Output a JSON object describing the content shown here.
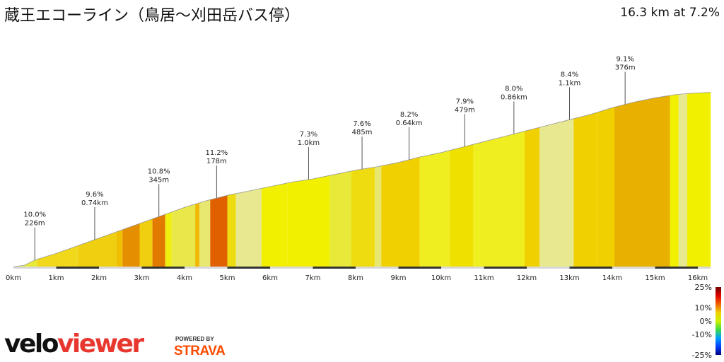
{
  "title": "蔵王エコーライン（鳥居〜刈田岳バス停）",
  "summary": "16.3 km at 7.2%",
  "chart_data": {
    "type": "area",
    "xlabel": "",
    "ylabel": "",
    "xlim": [
      0,
      16.3
    ],
    "x_ticks": [
      "0km",
      "1km",
      "2km",
      "3km",
      "4km",
      "5km",
      "6km",
      "7km",
      "8km",
      "9km",
      "10km",
      "11km",
      "12km",
      "13km",
      "14km",
      "15km",
      "16km"
    ],
    "profile_distance_km": [
      0,
      0.25,
      0.5,
      1.0,
      1.5,
      2.0,
      2.5,
      3.0,
      3.5,
      4.0,
      4.5,
      5.0,
      5.5,
      6.0,
      6.5,
      7.0,
      7.5,
      8.0,
      8.5,
      9.0,
      9.5,
      10.0,
      10.5,
      11.0,
      11.5,
      12.0,
      12.5,
      13.0,
      13.5,
      14.0,
      14.5,
      15.0,
      15.5,
      15.8,
      16.3
    ],
    "profile_height_rel": [
      0,
      0.01,
      0.06,
      0.12,
      0.19,
      0.26,
      0.33,
      0.4,
      0.47,
      0.54,
      0.6,
      0.65,
      0.69,
      0.73,
      0.77,
      0.8,
      0.84,
      0.88,
      0.91,
      0.95,
      1.0,
      1.04,
      1.09,
      1.14,
      1.19,
      1.24,
      1.29,
      1.34,
      1.39,
      1.45,
      1.5,
      1.54,
      1.57,
      1.58,
      1.59
    ],
    "segment_boundaries_km": [
      0,
      0.55,
      1.5,
      2.4,
      2.55,
      2.95,
      3.25,
      3.55,
      3.7,
      4.25,
      4.35,
      4.6,
      5.0,
      5.2,
      5.8,
      6.4,
      7.4,
      7.9,
      8.45,
      8.6,
      9.5,
      10.2,
      10.75,
      11.95,
      12.3,
      13.1,
      13.65,
      14.05,
      15.35,
      15.55,
      15.75,
      16.3
    ],
    "segment_colors": [
      "#e9e93a",
      "#f2d81a",
      "#eed010",
      "#f0c000",
      "#e58e00",
      "#f0cf10",
      "#e27a00",
      "#f0f010",
      "#e8e84a",
      "#f0b800",
      "#e8e870",
      "#e06000",
      "#eedc10",
      "#e8e890",
      "#f0f000",
      "#f0f000",
      "#e9e93a",
      "#eedc10",
      "#e8e870",
      "#f0d000",
      "#eeee20",
      "#f0e000",
      "#eeee20",
      "#f0d000",
      "#e8e890",
      "#f0d000",
      "#f0d000",
      "#e8b000",
      "#f0f000",
      "#e8e890",
      "#f0f000",
      "#64dc3c"
    ],
    "annotations": [
      {
        "km": 0.5,
        "grade": "10.0%",
        "length": "226m"
      },
      {
        "km": 1.9,
        "grade": "9.6%",
        "length": "0.74km"
      },
      {
        "km": 3.4,
        "grade": "10.8%",
        "length": "345m"
      },
      {
        "km": 4.75,
        "grade": "11.2%",
        "length": "178m"
      },
      {
        "km": 6.9,
        "grade": "7.3%",
        "length": "1.0km"
      },
      {
        "km": 8.15,
        "grade": "7.6%",
        "length": "485m"
      },
      {
        "km": 9.25,
        "grade": "8.2%",
        "length": "0.64km"
      },
      {
        "km": 10.55,
        "grade": "7.9%",
        "length": "479m"
      },
      {
        "km": 11.7,
        "grade": "8.0%",
        "length": "0.86km"
      },
      {
        "km": 13.0,
        "grade": "8.4%",
        "length": "1.1km"
      },
      {
        "km": 14.3,
        "grade": "9.1%",
        "length": "376m"
      }
    ],
    "legend": {
      "placement": "bottom-right",
      "labels": [
        "25%",
        "10%",
        "0%",
        "-10%",
        "-25%"
      ],
      "gradient_colors": [
        "#700000",
        "#e00000",
        "#f06000",
        "#f0d000",
        "#d0f000",
        "#40dd40",
        "#00a0ff",
        "#0040ff",
        "#000080"
      ]
    }
  },
  "branding": {
    "logo_velo": "velo",
    "logo_viewer": "viewer",
    "powered_by": "POWERED BY",
    "strava": "STRAVA"
  }
}
